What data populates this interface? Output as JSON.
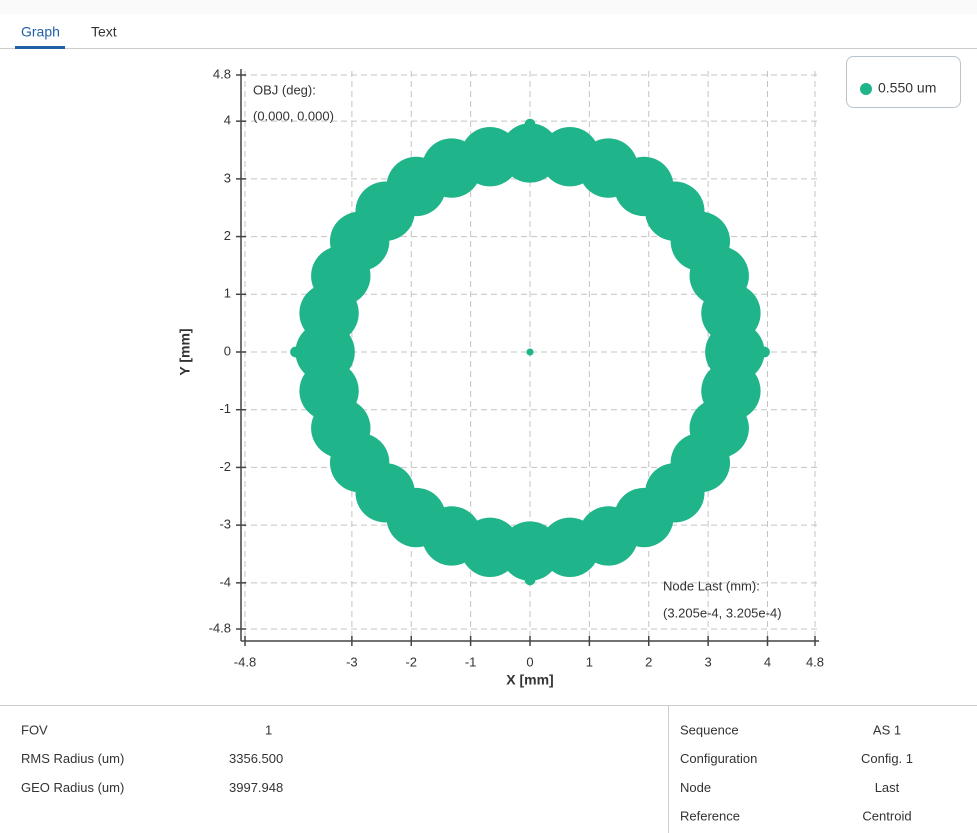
{
  "tabs": [
    "Graph",
    "Text"
  ],
  "chart_data": {
    "type": "scatter",
    "x_label": "X [mm]",
    "y_label": "Y [mm]",
    "annotations": [
      "OBJ (deg):",
      "(0.000, 0.000)",
      "Node Last (mm):",
      "(3.205e-4, 3.205e-4)"
    ],
    "xlim": [
      -4.8,
      4.8
    ],
    "ylim": [
      -4.8,
      4.8
    ],
    "xticks": [
      -4.8,
      -3,
      -2,
      -1,
      0,
      1,
      2,
      3,
      4,
      4.8
    ],
    "yticks": [
      -4.8,
      -4,
      -3,
      -2,
      -1,
      0,
      1,
      2,
      3,
      4,
      4.8
    ],
    "grid": true,
    "legend": "upper right",
    "series": [
      {
        "name": "0.550 um",
        "color": "#1fb48a",
        "x": [
          3.45,
          3.384,
          3.187,
          2.869,
          2.439,
          1.917,
          1.32,
          0.673,
          0,
          -0.673,
          -1.32,
          -1.917,
          -2.439,
          -2.869,
          -3.187,
          -3.384,
          -3.45,
          -3.384,
          -3.187,
          -2.869,
          -2.439,
          -1.917,
          -1.32,
          -0.673,
          0,
          0.673,
          1.32,
          1.917,
          2.439,
          2.869,
          3.187,
          3.384,
          0,
          0,
          0,
          3.95,
          -3.95
        ],
        "y": [
          0,
          0.673,
          1.32,
          1.917,
          2.439,
          2.869,
          3.187,
          3.384,
          3.45,
          3.384,
          3.187,
          2.869,
          2.439,
          1.917,
          1.32,
          0.673,
          0,
          -0.673,
          -1.32,
          -1.917,
          -2.439,
          -2.869,
          -3.187,
          -3.384,
          -3.45,
          -3.384,
          -3.187,
          -2.869,
          -2.439,
          -1.917,
          -1.32,
          -0.673,
          0,
          3.95,
          -3.95,
          0,
          0
        ],
        "sizes": [
          0.5,
          0.5,
          0.5,
          0.5,
          0.5,
          0.5,
          0.5,
          0.5,
          0.5,
          0.5,
          0.5,
          0.5,
          0.5,
          0.5,
          0.5,
          0.5,
          0.5,
          0.5,
          0.5,
          0.5,
          0.5,
          0.5,
          0.5,
          0.5,
          0.5,
          0.5,
          0.5,
          0.5,
          0.5,
          0.5,
          0.5,
          0.5,
          0.06,
          0.09,
          0.09,
          0.09,
          0.09
        ]
      }
    ]
  },
  "summary": {
    "rows": [
      [
        "FOV",
        "1"
      ],
      [
        "RMS Radius (um)",
        "3356.500"
      ],
      [
        "GEO Radius (um)",
        "3997.948"
      ]
    ]
  },
  "settings": {
    "rows": [
      [
        "Sequence",
        "AS 1"
      ],
      [
        "Configuration",
        "Config. 1"
      ],
      [
        "Node",
        "Last"
      ],
      [
        "Reference",
        "Centroid"
      ]
    ]
  }
}
